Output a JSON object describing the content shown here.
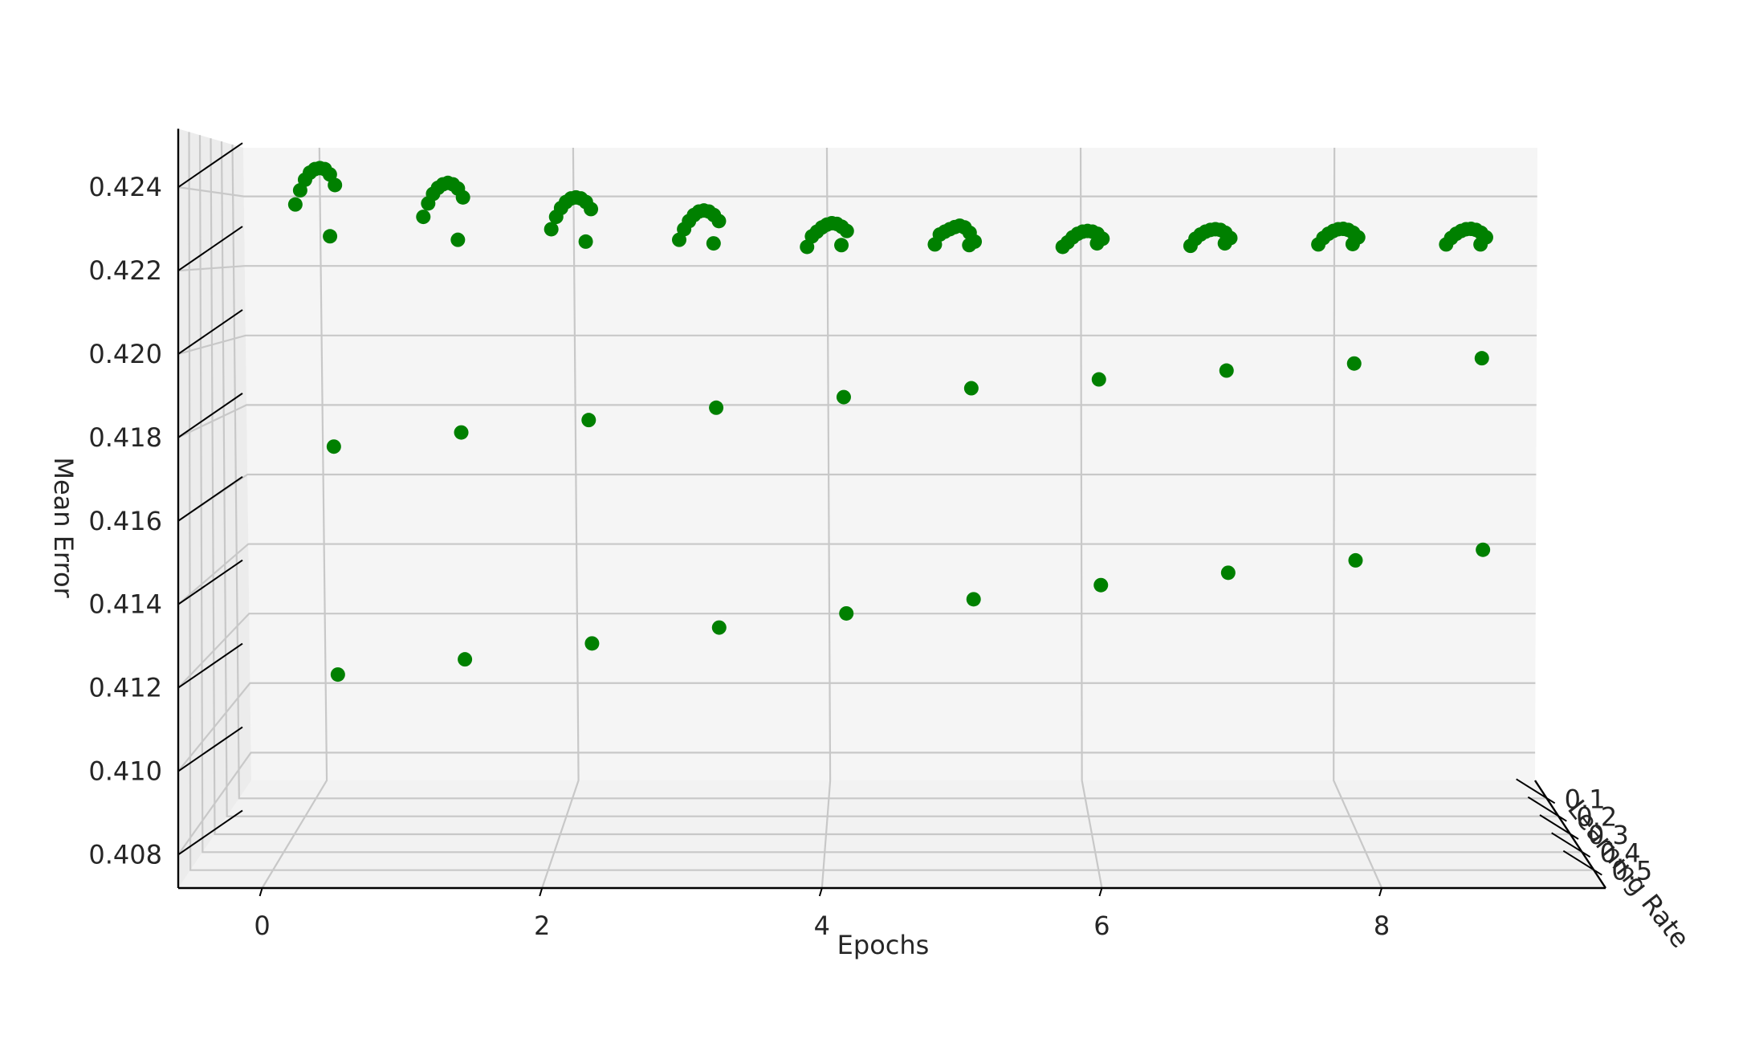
{
  "chart_data": {
    "type": "scatter",
    "projection": "3d",
    "marker_color": "#008000",
    "xlabel": "Epochs",
    "ylabel": "Learning Rate",
    "zlabel": "Mean Error",
    "xticks": [
      "0",
      "2",
      "4",
      "6",
      "8"
    ],
    "yticks": [
      "0.1",
      "0.2",
      "0.3",
      "0.4",
      "0.5"
    ],
    "zticks": [
      "0.408",
      "0.410",
      "0.412",
      "0.414",
      "0.416",
      "0.418",
      "0.420",
      "0.422",
      "0.424"
    ],
    "xlim": [
      -0.6,
      9.6
    ],
    "ylim": [
      0.0,
      0.6
    ],
    "zlim": [
      0.4072,
      0.4254
    ],
    "grid": true,
    "points": [
      {
        "x": 0,
        "y": 0.05,
        "z": 0.42375
      },
      {
        "x": 0,
        "y": 0.05,
        "z": 0.42415
      },
      {
        "x": 0,
        "y": 0.05,
        "z": 0.42445
      },
      {
        "x": 0,
        "y": 0.05,
        "z": 0.42465
      },
      {
        "x": 0,
        "y": 0.05,
        "z": 0.42475
      },
      {
        "x": 0,
        "y": 0.05,
        "z": 0.42478
      },
      {
        "x": 0,
        "y": 0.05,
        "z": 0.42475
      },
      {
        "x": 0,
        "y": 0.05,
        "z": 0.4246
      },
      {
        "x": 0,
        "y": 0.05,
        "z": 0.4243
      },
      {
        "x": 0,
        "y": 0.05,
        "z": 0.42285
      },
      {
        "x": 0,
        "y": 0.05,
        "z": 0.4169
      },
      {
        "x": 0,
        "y": 0.05,
        "z": 0.41045
      },
      {
        "x": 1,
        "y": 0.05,
        "z": 0.4234
      },
      {
        "x": 1,
        "y": 0.05,
        "z": 0.42378
      },
      {
        "x": 1,
        "y": 0.05,
        "z": 0.42405
      },
      {
        "x": 1,
        "y": 0.05,
        "z": 0.42422
      },
      {
        "x": 1,
        "y": 0.05,
        "z": 0.42432
      },
      {
        "x": 1,
        "y": 0.05,
        "z": 0.42436
      },
      {
        "x": 1,
        "y": 0.05,
        "z": 0.42432
      },
      {
        "x": 1,
        "y": 0.05,
        "z": 0.4242
      },
      {
        "x": 1,
        "y": 0.05,
        "z": 0.42395
      },
      {
        "x": 1,
        "y": 0.05,
        "z": 0.42275
      },
      {
        "x": 1,
        "y": 0.05,
        "z": 0.4173
      },
      {
        "x": 1,
        "y": 0.05,
        "z": 0.41088
      },
      {
        "x": 2,
        "y": 0.05,
        "z": 0.42305
      },
      {
        "x": 2,
        "y": 0.05,
        "z": 0.4234
      },
      {
        "x": 2,
        "y": 0.05,
        "z": 0.42365
      },
      {
        "x": 2,
        "y": 0.05,
        "z": 0.42382
      },
      {
        "x": 2,
        "y": 0.05,
        "z": 0.42392
      },
      {
        "x": 2,
        "y": 0.05,
        "z": 0.42395
      },
      {
        "x": 2,
        "y": 0.05,
        "z": 0.42392
      },
      {
        "x": 2,
        "y": 0.05,
        "z": 0.42382
      },
      {
        "x": 2,
        "y": 0.05,
        "z": 0.42362
      },
      {
        "x": 2,
        "y": 0.05,
        "z": 0.4227
      },
      {
        "x": 2,
        "y": 0.05,
        "z": 0.41765
      },
      {
        "x": 2,
        "y": 0.05,
        "z": 0.41133
      },
      {
        "x": 3,
        "y": 0.05,
        "z": 0.42275
      },
      {
        "x": 3,
        "y": 0.05,
        "z": 0.42305
      },
      {
        "x": 3,
        "y": 0.05,
        "z": 0.42328
      },
      {
        "x": 3,
        "y": 0.05,
        "z": 0.42345
      },
      {
        "x": 3,
        "y": 0.05,
        "z": 0.42355
      },
      {
        "x": 3,
        "y": 0.05,
        "z": 0.42358
      },
      {
        "x": 3,
        "y": 0.05,
        "z": 0.42355
      },
      {
        "x": 3,
        "y": 0.05,
        "z": 0.42345
      },
      {
        "x": 3,
        "y": 0.05,
        "z": 0.42328
      },
      {
        "x": 3,
        "y": 0.05,
        "z": 0.42265
      },
      {
        "x": 3,
        "y": 0.05,
        "z": 0.418
      },
      {
        "x": 3,
        "y": 0.05,
        "z": 0.41178
      },
      {
        "x": 4,
        "y": 0.05,
        "z": 0.42255
      },
      {
        "x": 4,
        "y": 0.05,
        "z": 0.42285
      },
      {
        "x": 4,
        "y": 0.05,
        "z": 0.42298
      },
      {
        "x": 4,
        "y": 0.05,
        "z": 0.4231
      },
      {
        "x": 4,
        "y": 0.05,
        "z": 0.42318
      },
      {
        "x": 4,
        "y": 0.05,
        "z": 0.42322
      },
      {
        "x": 4,
        "y": 0.05,
        "z": 0.4232
      },
      {
        "x": 4,
        "y": 0.05,
        "z": 0.42312
      },
      {
        "x": 4,
        "y": 0.05,
        "z": 0.423
      },
      {
        "x": 4,
        "y": 0.05,
        "z": 0.4226
      },
      {
        "x": 4,
        "y": 0.05,
        "z": 0.4183
      },
      {
        "x": 4,
        "y": 0.05,
        "z": 0.41218
      },
      {
        "x": 5,
        "y": 0.05,
        "z": 0.42262
      },
      {
        "x": 5,
        "y": 0.05,
        "z": 0.4229
      },
      {
        "x": 5,
        "y": 0.05,
        "z": 0.42298
      },
      {
        "x": 5,
        "y": 0.05,
        "z": 0.42305
      },
      {
        "x": 5,
        "y": 0.05,
        "z": 0.42311
      },
      {
        "x": 5,
        "y": 0.05,
        "z": 0.42315
      },
      {
        "x": 5,
        "y": 0.05,
        "z": 0.4231
      },
      {
        "x": 5,
        "y": 0.05,
        "z": 0.42295
      },
      {
        "x": 5,
        "y": 0.05,
        "z": 0.4227
      },
      {
        "x": 5,
        "y": 0.05,
        "z": 0.4226
      },
      {
        "x": 5,
        "y": 0.05,
        "z": 0.41855
      },
      {
        "x": 5,
        "y": 0.05,
        "z": 0.41258
      },
      {
        "x": 6,
        "y": 0.05,
        "z": 0.42255
      },
      {
        "x": 6,
        "y": 0.05,
        "z": 0.42268
      },
      {
        "x": 6,
        "y": 0.05,
        "z": 0.42282
      },
      {
        "x": 6,
        "y": 0.05,
        "z": 0.42292
      },
      {
        "x": 6,
        "y": 0.05,
        "z": 0.42298
      },
      {
        "x": 6,
        "y": 0.05,
        "z": 0.423
      },
      {
        "x": 6,
        "y": 0.05,
        "z": 0.42298
      },
      {
        "x": 6,
        "y": 0.05,
        "z": 0.42292
      },
      {
        "x": 6,
        "y": 0.05,
        "z": 0.42278
      },
      {
        "x": 6,
        "y": 0.05,
        "z": 0.42265
      },
      {
        "x": 6,
        "y": 0.05,
        "z": 0.4188
      },
      {
        "x": 6,
        "y": 0.05,
        "z": 0.41298
      },
      {
        "x": 7,
        "y": 0.05,
        "z": 0.42258
      },
      {
        "x": 7,
        "y": 0.05,
        "z": 0.42278
      },
      {
        "x": 7,
        "y": 0.05,
        "z": 0.4229
      },
      {
        "x": 7,
        "y": 0.05,
        "z": 0.42298
      },
      {
        "x": 7,
        "y": 0.05,
        "z": 0.42303
      },
      {
        "x": 7,
        "y": 0.05,
        "z": 0.42305
      },
      {
        "x": 7,
        "y": 0.05,
        "z": 0.42303
      },
      {
        "x": 7,
        "y": 0.05,
        "z": 0.42295
      },
      {
        "x": 7,
        "y": 0.05,
        "z": 0.4228
      },
      {
        "x": 7,
        "y": 0.05,
        "z": 0.42265
      },
      {
        "x": 7,
        "y": 0.05,
        "z": 0.41905
      },
      {
        "x": 7,
        "y": 0.05,
        "z": 0.41333
      },
      {
        "x": 8,
        "y": 0.05,
        "z": 0.42262
      },
      {
        "x": 8,
        "y": 0.05,
        "z": 0.4228
      },
      {
        "x": 8,
        "y": 0.05,
        "z": 0.42292
      },
      {
        "x": 8,
        "y": 0.05,
        "z": 0.423
      },
      {
        "x": 8,
        "y": 0.05,
        "z": 0.42305
      },
      {
        "x": 8,
        "y": 0.05,
        "z": 0.42306
      },
      {
        "x": 8,
        "y": 0.05,
        "z": 0.42303
      },
      {
        "x": 8,
        "y": 0.05,
        "z": 0.42295
      },
      {
        "x": 8,
        "y": 0.05,
        "z": 0.42282
      },
      {
        "x": 8,
        "y": 0.05,
        "z": 0.42263
      },
      {
        "x": 8,
        "y": 0.05,
        "z": 0.41925
      },
      {
        "x": 8,
        "y": 0.05,
        "z": 0.41368
      },
      {
        "x": 9,
        "y": 0.05,
        "z": 0.42262
      },
      {
        "x": 9,
        "y": 0.05,
        "z": 0.4228
      },
      {
        "x": 9,
        "y": 0.05,
        "z": 0.42292
      },
      {
        "x": 9,
        "y": 0.05,
        "z": 0.423
      },
      {
        "x": 9,
        "y": 0.05,
        "z": 0.42305
      },
      {
        "x": 9,
        "y": 0.05,
        "z": 0.42306
      },
      {
        "x": 9,
        "y": 0.05,
        "z": 0.42303
      },
      {
        "x": 9,
        "y": 0.05,
        "z": 0.42295
      },
      {
        "x": 9,
        "y": 0.05,
        "z": 0.42282
      },
      {
        "x": 9,
        "y": 0.05,
        "z": 0.42262
      },
      {
        "x": 9,
        "y": 0.05,
        "z": 0.4194
      },
      {
        "x": 9,
        "y": 0.05,
        "z": 0.41398
      }
    ]
  }
}
